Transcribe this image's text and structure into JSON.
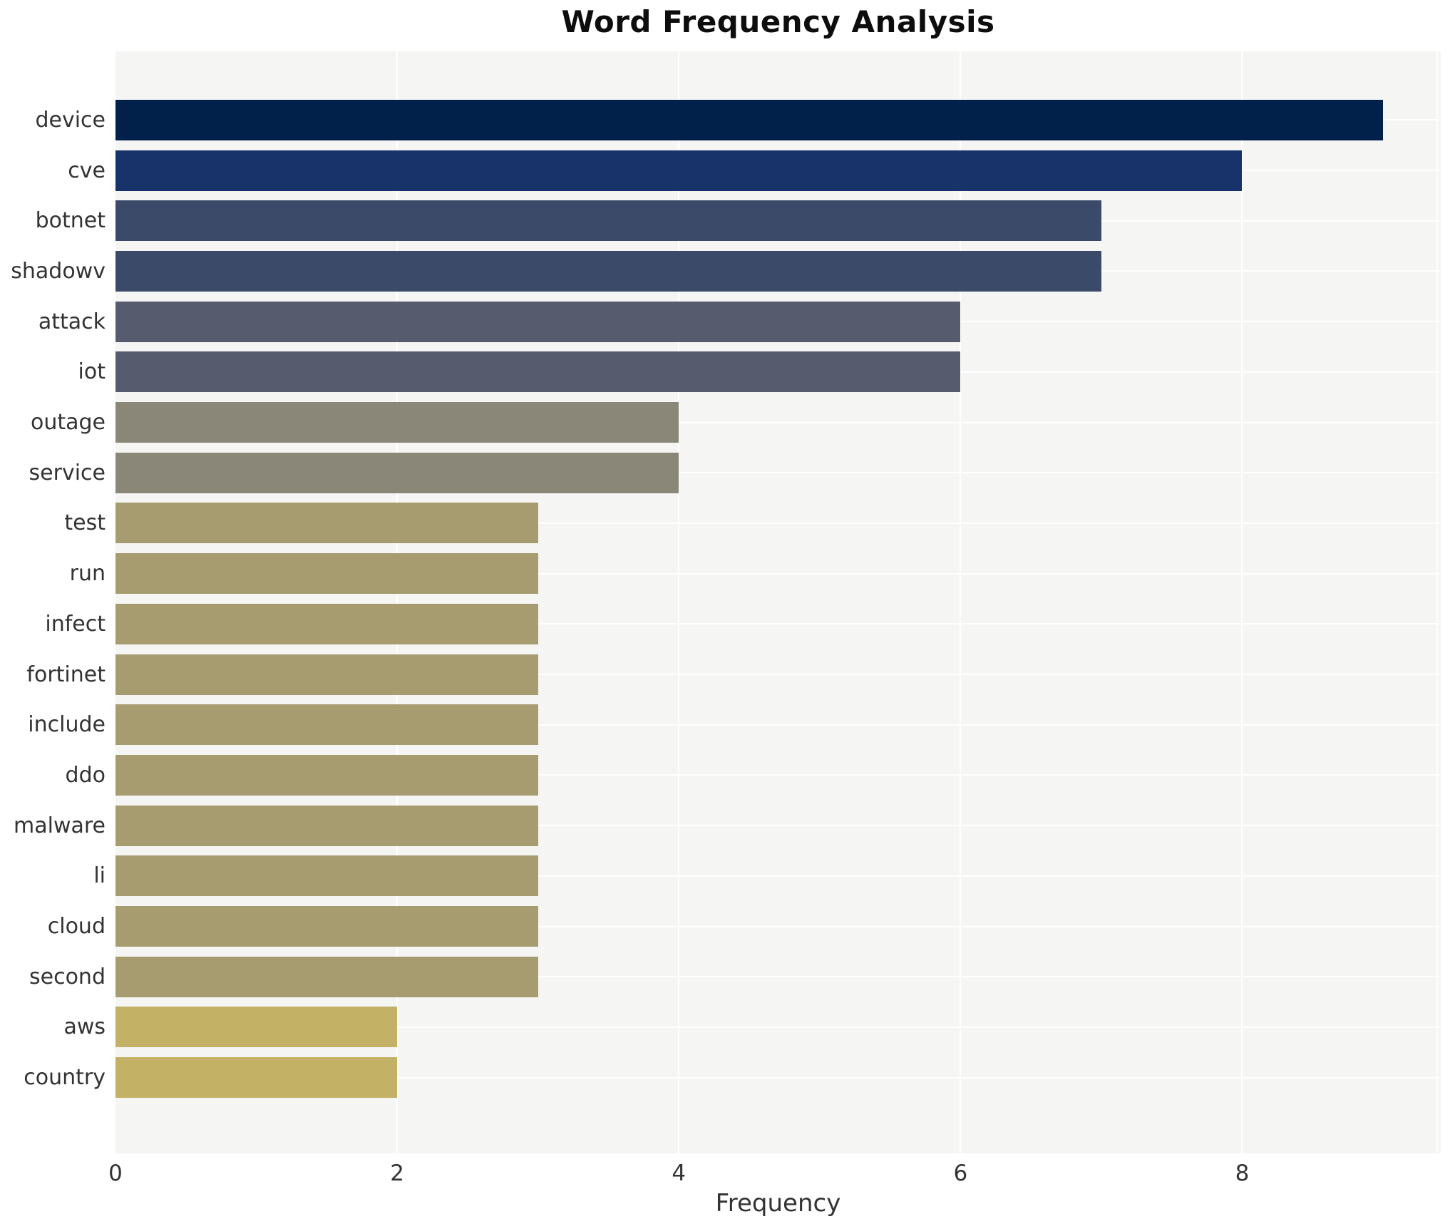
{
  "chart_data": {
    "type": "bar",
    "orientation": "horizontal",
    "title": "Word Frequency Analysis",
    "xlabel": "Frequency",
    "ylabel": "",
    "categories": [
      "device",
      "cve",
      "botnet",
      "shadowv",
      "attack",
      "iot",
      "outage",
      "service",
      "test",
      "run",
      "infect",
      "fortinet",
      "include",
      "ddo",
      "malware",
      "li",
      "cloud",
      "second",
      "aws",
      "country"
    ],
    "values": [
      9,
      8,
      7,
      7,
      6,
      6,
      4,
      4,
      3,
      3,
      3,
      3,
      3,
      3,
      3,
      3,
      3,
      3,
      2,
      2
    ],
    "bar_colors": [
      "#02214a",
      "#17336a",
      "#3c4a6a",
      "#3c4a6a",
      "#565c6d",
      "#565c6d",
      "#8a8678",
      "#8a8678",
      "#a69c70",
      "#a69c70",
      "#a69c70",
      "#a69c70",
      "#a69c70",
      "#a69c70",
      "#a69c70",
      "#a69c70",
      "#a69c70",
      "#a69c70",
      "#c3b166",
      "#c3b166"
    ],
    "xticks": [
      "0",
      "2",
      "4",
      "6",
      "8"
    ],
    "xtick_values": [
      0,
      2,
      4,
      6,
      8
    ],
    "xlim": [
      0,
      9.41
    ],
    "grid": true,
    "legend": false,
    "colors": {
      "figure_bg": "#ffffff",
      "plot_bg": "#f5f5f4",
      "gridline": "#ffffff",
      "tick_text": "#333333",
      "title_text": "#0d0d0d"
    }
  }
}
